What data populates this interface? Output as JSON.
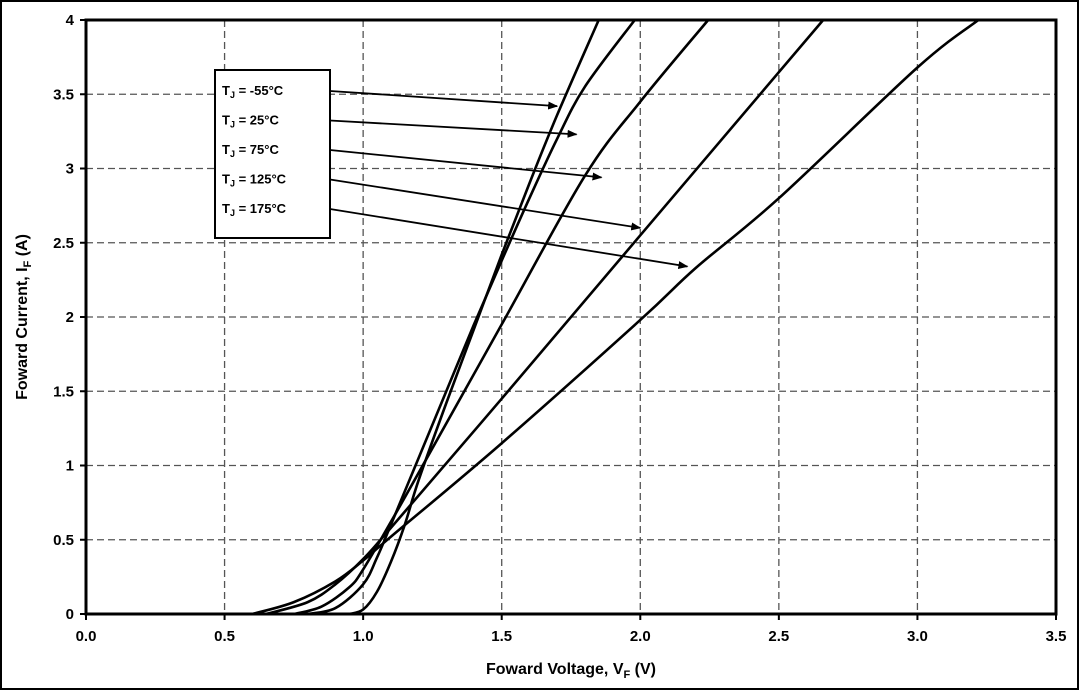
{
  "chart_data": {
    "type": "line",
    "title": "",
    "xlabel": {
      "main": "Foward Voltage, V",
      "sub": "F",
      "unit": " (V)"
    },
    "ylabel": {
      "main": "Foward Current, I",
      "sub": "F",
      "unit": " (A)"
    },
    "xlim": [
      0,
      3.5
    ],
    "ylim": [
      0,
      4
    ],
    "xticks": [
      "0.0",
      "0.5",
      "1.0",
      "1.5",
      "2.0",
      "2.5",
      "3.0",
      "3.5"
    ],
    "yticks": [
      "0",
      "0.5",
      "1",
      "1.5",
      "2",
      "2.5",
      "3",
      "3.5",
      "4"
    ],
    "grid": true,
    "legend_placement": "top-left",
    "series": [
      {
        "name": "T",
        "sub": "J",
        "rest": " = -55°C",
        "arrow_to": [
          1.7,
          3.42
        ],
        "points": [
          [
            0.95,
            0
          ],
          [
            1.0,
            0.03
          ],
          [
            1.05,
            0.15
          ],
          [
            1.1,
            0.35
          ],
          [
            1.15,
            0.6
          ],
          [
            1.2,
            0.9
          ],
          [
            1.3,
            1.42
          ],
          [
            1.4,
            1.92
          ],
          [
            1.5,
            2.42
          ],
          [
            1.6,
            2.9
          ],
          [
            1.7,
            3.36
          ],
          [
            1.85,
            4
          ]
        ]
      },
      {
        "name": "T",
        "sub": "J",
        "rest": " = 25°C",
        "arrow_to": [
          1.77,
          3.23
        ],
        "points": [
          [
            0.8,
            0
          ],
          [
            0.9,
            0.04
          ],
          [
            1.0,
            0.2
          ],
          [
            1.05,
            0.38
          ],
          [
            1.1,
            0.6
          ],
          [
            1.2,
            1.05
          ],
          [
            1.3,
            1.5
          ],
          [
            1.4,
            1.95
          ],
          [
            1.5,
            2.38
          ],
          [
            1.6,
            2.8
          ],
          [
            1.7,
            3.2
          ],
          [
            1.8,
            3.55
          ],
          [
            1.98,
            4
          ]
        ]
      },
      {
        "name": "T",
        "sub": "J",
        "rest": " = 75°C",
        "arrow_to": [
          1.86,
          2.94
        ],
        "points": [
          [
            0.75,
            0
          ],
          [
            0.85,
            0.05
          ],
          [
            0.95,
            0.18
          ],
          [
            1.0,
            0.3
          ],
          [
            1.1,
            0.62
          ],
          [
            1.2,
            0.95
          ],
          [
            1.5,
            1.95
          ],
          [
            1.8,
            2.95
          ],
          [
            2.0,
            3.45
          ],
          [
            2.245,
            4
          ]
        ]
      },
      {
        "name": "T",
        "sub": "J",
        "rest": " = 125°C",
        "arrow_to": [
          2.0,
          2.6
        ],
        "points": [
          [
            0.65,
            0
          ],
          [
            0.8,
            0.08
          ],
          [
            0.9,
            0.2
          ],
          [
            1.0,
            0.37
          ],
          [
            1.1,
            0.58
          ],
          [
            1.5,
            1.45
          ],
          [
            2.0,
            2.55
          ],
          [
            2.66,
            4
          ]
        ]
      },
      {
        "name": "T",
        "sub": "J",
        "rest": " = 175°C",
        "arrow_to": [
          2.17,
          2.34
        ],
        "points": [
          [
            0.6,
            0
          ],
          [
            0.75,
            0.08
          ],
          [
            0.9,
            0.22
          ],
          [
            1.0,
            0.36
          ],
          [
            1.1,
            0.52
          ],
          [
            1.5,
            1.15
          ],
          [
            2.0,
            1.98
          ],
          [
            2.2,
            2.33
          ],
          [
            2.5,
            2.8
          ],
          [
            3.0,
            3.68
          ],
          [
            3.22,
            4
          ]
        ]
      }
    ]
  }
}
